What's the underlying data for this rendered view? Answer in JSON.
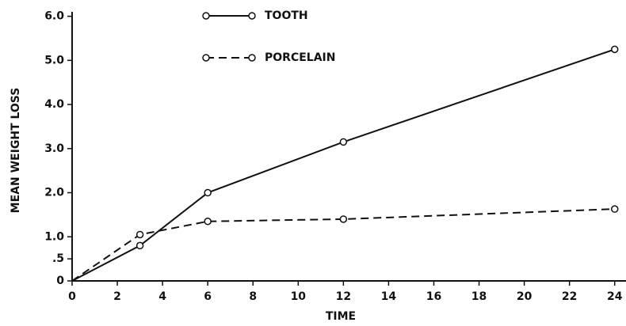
{
  "chart_data": {
    "type": "line",
    "xlabel": "TIME",
    "ylabel": "MEAN WEIGHT LOSS",
    "x": [
      0,
      3,
      6,
      12,
      24
    ],
    "series": [
      {
        "name": "TOOTH",
        "color": "#111111",
        "style": "solid",
        "values": [
          0,
          0.8,
          2.0,
          3.15,
          5.25
        ]
      },
      {
        "name": "PORCELAIN",
        "color": "#111111",
        "style": "dashed",
        "values": [
          0,
          1.05,
          1.35,
          1.4,
          1.63
        ]
      }
    ],
    "xlim": [
      0,
      24.5
    ],
    "xticks": [
      0,
      2,
      4,
      6,
      8,
      10,
      12,
      14,
      16,
      18,
      20,
      22,
      24
    ],
    "ylim": [
      0,
      6.1
    ],
    "yticks": [
      0,
      {
        "value": 0.5,
        "label": ".5"
      },
      {
        "value": 1,
        "label": "1.0"
      },
      {
        "value": 2,
        "label": "2.0"
      },
      {
        "value": 3,
        "label": "3.0"
      },
      {
        "value": 4,
        "label": "4.0"
      },
      {
        "value": 5,
        "label": "5.0"
      },
      {
        "value": 6,
        "label": "6.0"
      }
    ],
    "grid": false
  }
}
